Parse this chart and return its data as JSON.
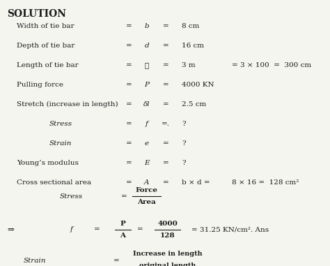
{
  "title": "SOLUTION",
  "bg_color": "#f5f5f0",
  "text_color": "#1a1a1a",
  "rows": [
    {
      "label": "Width of tie bar",
      "indent": 0.05,
      "eq1": "=",
      "var": "b",
      "eq2": "=",
      "val": "8 cm",
      "extra": ""
    },
    {
      "label": "Depth of tie bar",
      "indent": 0.05,
      "eq1": "=",
      "var": "d",
      "eq2": "=",
      "val": "16 cm",
      "extra": ""
    },
    {
      "label": "Length of tie bar",
      "indent": 0.05,
      "eq1": "=",
      "var": "ℓ",
      "eq2": "=",
      "val": "3 m",
      "extra": "= 3 × 100  =  300 cm"
    },
    {
      "label": "Pulling force",
      "indent": 0.05,
      "eq1": "=",
      "var": "P",
      "eq2": "=",
      "val": "4000 KN",
      "extra": ""
    },
    {
      "label": "Stretch (increase in length)",
      "indent": 0.05,
      "eq1": "=",
      "var": "δl",
      "eq2": "=",
      "val": "2.5 cm",
      "extra": ""
    },
    {
      "label": "Stress",
      "indent": 0.15,
      "eq1": "=",
      "var": "f",
      "eq2": "=.",
      "val": "?",
      "extra": ""
    },
    {
      "label": "Strain",
      "indent": 0.15,
      "eq1": "=",
      "var": "e",
      "eq2": "=",
      "val": "?",
      "extra": ""
    },
    {
      "label": "Young’s modulus",
      "indent": 0.05,
      "eq1": "=",
      "var": "E",
      "eq2": "=",
      "val": "?",
      "extra": ""
    },
    {
      "label": "Cross sectional area",
      "indent": 0.05,
      "eq1": "=",
      "var": "A",
      "eq2": "=",
      "val": "b × d =",
      "extra": "8 × 16 =  128 cm²"
    }
  ],
  "stress_formula_label": "Stress",
  "stress_formula_eq": "=",
  "stress_formula_num": "Force",
  "stress_formula_den": "Area",
  "arrow_label": "⇒",
  "arrow_var": "f",
  "arrow_eq": "=",
  "arrow_frac_num": "P",
  "arrow_frac_den": "A",
  "arrow_eq2": "=",
  "arrow_frac2_num": "4000",
  "arrow_frac2_den": "128",
  "arrow_result": "= 31.25 KN/cm². Ans",
  "strain_label": "Strain",
  "strain_eq": "=",
  "strain_frac_num": "Increase in length",
  "strain_frac_den": "original length"
}
